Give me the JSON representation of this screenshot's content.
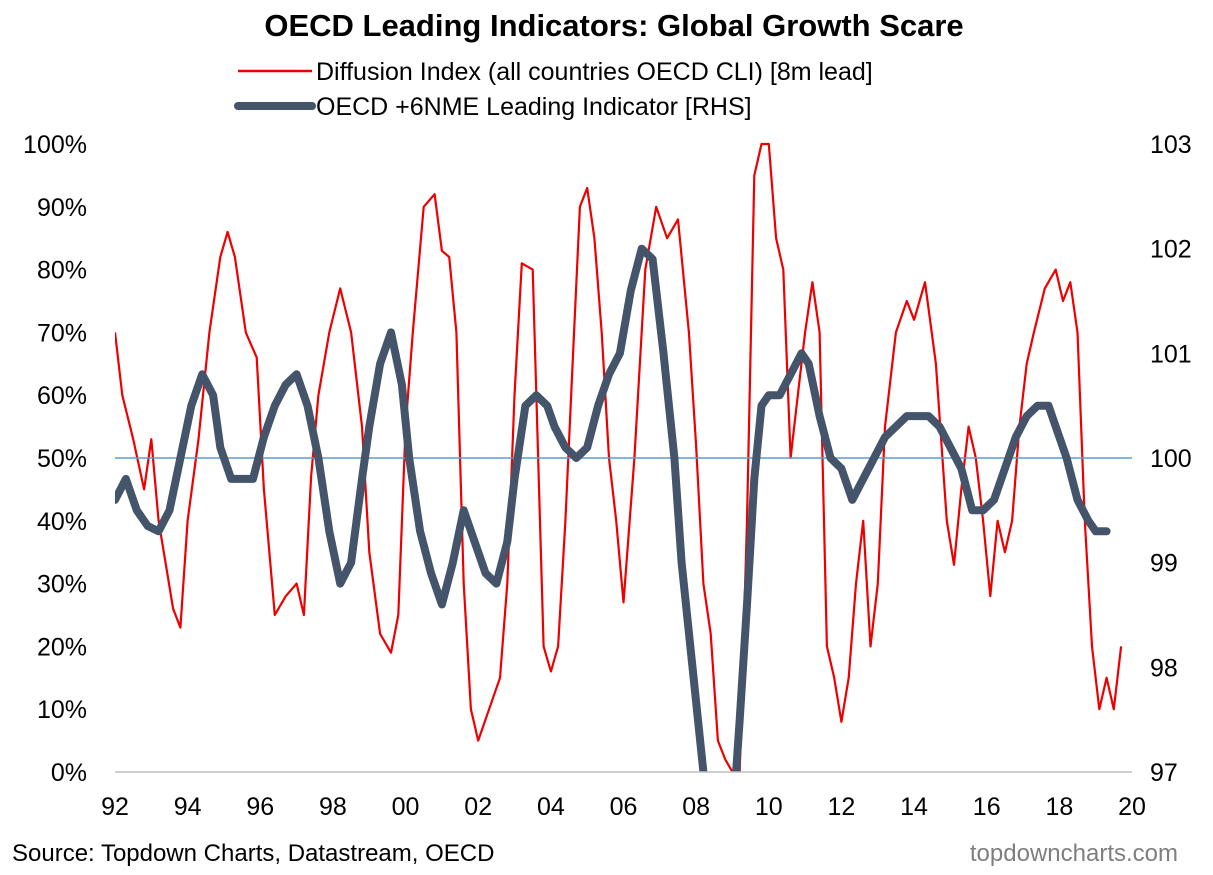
{
  "chart_data": {
    "type": "line",
    "title": "OECD Leading Indicators: Global Growth Scare",
    "source": "Source: Topdown Charts, Datastream, OECD",
    "watermark": "topdowncharts.com",
    "legend_position": "top",
    "grid": false,
    "x_range": [
      1992,
      2020
    ],
    "x_ticks": [
      1992,
      1994,
      1996,
      1998,
      2000,
      2002,
      2004,
      2006,
      2008,
      2010,
      2012,
      2014,
      2016,
      2018,
      2020
    ],
    "x_tick_labels": [
      "92",
      "94",
      "96",
      "98",
      "00",
      "02",
      "04",
      "06",
      "08",
      "10",
      "12",
      "14",
      "16",
      "18",
      "20"
    ],
    "y_left": {
      "range": [
        0,
        100
      ],
      "ticks": [
        0,
        10,
        20,
        30,
        40,
        50,
        60,
        70,
        80,
        90,
        100
      ],
      "tick_labels": [
        "0%",
        "10%",
        "20%",
        "30%",
        "40%",
        "50%",
        "60%",
        "70%",
        "80%",
        "90%",
        "100%"
      ]
    },
    "y_right": {
      "range": [
        97,
        103
      ],
      "ticks": [
        97,
        98,
        99,
        100,
        101,
        102,
        103
      ],
      "tick_labels": [
        "97",
        "98",
        "99",
        "100",
        "101",
        "102",
        "103"
      ]
    },
    "reference_line": {
      "axis": "right",
      "value": 100,
      "color": "#5b9bd5"
    },
    "series": [
      {
        "name": "Diffusion Index (all countries OECD CLI) [8m lead]",
        "axis": "left",
        "color": "#ee0000",
        "x": [
          1992.0,
          1992.2,
          1992.5,
          1992.8,
          1993.0,
          1993.2,
          1993.4,
          1993.6,
          1993.8,
          1994.0,
          1994.3,
          1994.6,
          1994.9,
          1995.1,
          1995.3,
          1995.6,
          1995.9,
          1996.1,
          1996.4,
          1996.7,
          1997.0,
          1997.2,
          1997.4,
          1997.6,
          1997.9,
          1998.2,
          1998.5,
          1998.8,
          1999.0,
          1999.3,
          1999.6,
          1999.8,
          2000.0,
          2000.2,
          2000.5,
          2000.8,
          2001.0,
          2001.2,
          2001.4,
          2001.6,
          2001.8,
          2002.0,
          2002.3,
          2002.6,
          2002.8,
          2003.0,
          2003.2,
          2003.5,
          2003.8,
          2004.0,
          2004.2,
          2004.4,
          2004.6,
          2004.8,
          2005.0,
          2005.2,
          2005.4,
          2005.6,
          2005.8,
          2006.0,
          2006.3,
          2006.6,
          2006.9,
          2007.2,
          2007.5,
          2007.8,
          2008.0,
          2008.2,
          2008.4,
          2008.6,
          2008.8,
          2009.0,
          2009.2,
          2009.4,
          2009.6,
          2009.8,
          2010.0,
          2010.2,
          2010.4,
          2010.6,
          2010.8,
          2011.0,
          2011.2,
          2011.4,
          2011.6,
          2011.8,
          2012.0,
          2012.2,
          2012.4,
          2012.6,
          2012.8,
          2013.0,
          2013.2,
          2013.5,
          2013.8,
          2014.0,
          2014.3,
          2014.6,
          2014.9,
          2015.1,
          2015.3,
          2015.5,
          2015.7,
          2015.9,
          2016.1,
          2016.3,
          2016.5,
          2016.7,
          2016.9,
          2017.1,
          2017.3,
          2017.6,
          2017.9,
          2018.1,
          2018.3,
          2018.5,
          2018.7,
          2018.9,
          2019.1,
          2019.3,
          2019.5,
          2019.7
        ],
        "values": [
          70,
          60,
          53,
          45,
          53,
          40,
          33,
          26,
          23,
          40,
          53,
          70,
          82,
          86,
          82,
          70,
          66,
          45,
          25,
          28,
          30,
          25,
          47,
          60,
          70,
          77,
          70,
          55,
          35,
          22,
          19,
          25,
          55,
          70,
          90,
          92,
          83,
          82,
          70,
          30,
          10,
          5,
          10,
          15,
          30,
          60,
          81,
          80,
          20,
          16,
          20,
          40,
          65,
          90,
          93,
          85,
          70,
          50,
          40,
          27,
          50,
          80,
          90,
          85,
          88,
          70,
          52,
          30,
          22,
          5,
          2,
          0,
          0,
          40,
          95,
          100,
          100,
          85,
          80,
          50,
          60,
          70,
          78,
          70,
          20,
          15,
          8,
          15,
          30,
          40,
          20,
          30,
          55,
          70,
          75,
          72,
          78,
          65,
          40,
          33,
          45,
          55,
          50,
          40,
          28,
          40,
          35,
          40,
          55,
          65,
          70,
          77,
          80,
          75,
          78,
          70,
          40,
          20,
          10,
          15,
          10,
          20
        ]
      },
      {
        "name": "OECD +6NME Leading Indicator [RHS]",
        "axis": "right",
        "color": "#44546a",
        "x": [
          1992.0,
          1992.3,
          1992.6,
          1992.9,
          1993.2,
          1993.5,
          1993.8,
          1994.1,
          1994.4,
          1994.7,
          1994.9,
          1995.2,
          1995.5,
          1995.8,
          1996.1,
          1996.4,
          1996.7,
          1997.0,
          1997.3,
          1997.6,
          1997.9,
          1998.2,
          1998.5,
          1998.8,
          1999.0,
          1999.3,
          1999.6,
          1999.9,
          2000.1,
          2000.4,
          2000.7,
          2001.0,
          2001.3,
          2001.6,
          2001.9,
          2002.2,
          2002.5,
          2002.8,
          2003.0,
          2003.3,
          2003.6,
          2003.9,
          2004.1,
          2004.4,
          2004.7,
          2005.0,
          2005.3,
          2005.6,
          2005.9,
          2006.2,
          2006.5,
          2006.8,
          2007.1,
          2007.4,
          2007.6,
          2007.9,
          2008.2,
          2008.5,
          2008.8,
          2009.0,
          2009.2,
          2009.4,
          2009.6,
          2009.8,
          2010.0,
          2010.3,
          2010.6,
          2010.9,
          2011.1,
          2011.4,
          2011.7,
          2012.0,
          2012.3,
          2012.6,
          2012.9,
          2013.2,
          2013.5,
          2013.8,
          2014.1,
          2014.4,
          2014.7,
          2015.0,
          2015.3,
          2015.6,
          2015.9,
          2016.2,
          2016.5,
          2016.8,
          2017.1,
          2017.4,
          2017.7,
          2017.9,
          2018.2,
          2018.5,
          2018.8,
          2019.0,
          2019.3
        ],
        "values": [
          99.6,
          99.8,
          99.5,
          99.35,
          99.3,
          99.5,
          100.0,
          100.5,
          100.8,
          100.6,
          100.1,
          99.8,
          99.8,
          99.8,
          100.2,
          100.5,
          100.7,
          100.8,
          100.5,
          100.0,
          99.3,
          98.8,
          99.0,
          99.8,
          100.3,
          100.9,
          101.2,
          100.7,
          100.0,
          99.3,
          98.9,
          98.6,
          99.0,
          99.5,
          99.2,
          98.9,
          98.8,
          99.2,
          99.8,
          100.5,
          100.6,
          100.5,
          100.3,
          100.1,
          100.0,
          100.1,
          100.5,
          100.8,
          101.0,
          101.6,
          102.0,
          101.9,
          101.0,
          100.0,
          99.0,
          98.0,
          97.0,
          96.4,
          96.1,
          96.5,
          97.5,
          98.6,
          99.8,
          100.5,
          100.6,
          100.6,
          100.8,
          101.0,
          100.9,
          100.4,
          100.0,
          99.9,
          99.6,
          99.8,
          100.0,
          100.2,
          100.3,
          100.4,
          100.4,
          100.4,
          100.3,
          100.1,
          99.9,
          99.5,
          99.5,
          99.6,
          99.9,
          100.2,
          100.4,
          100.5,
          100.5,
          100.3,
          100.0,
          99.6,
          99.4,
          99.3,
          99.3
        ]
      }
    ]
  }
}
